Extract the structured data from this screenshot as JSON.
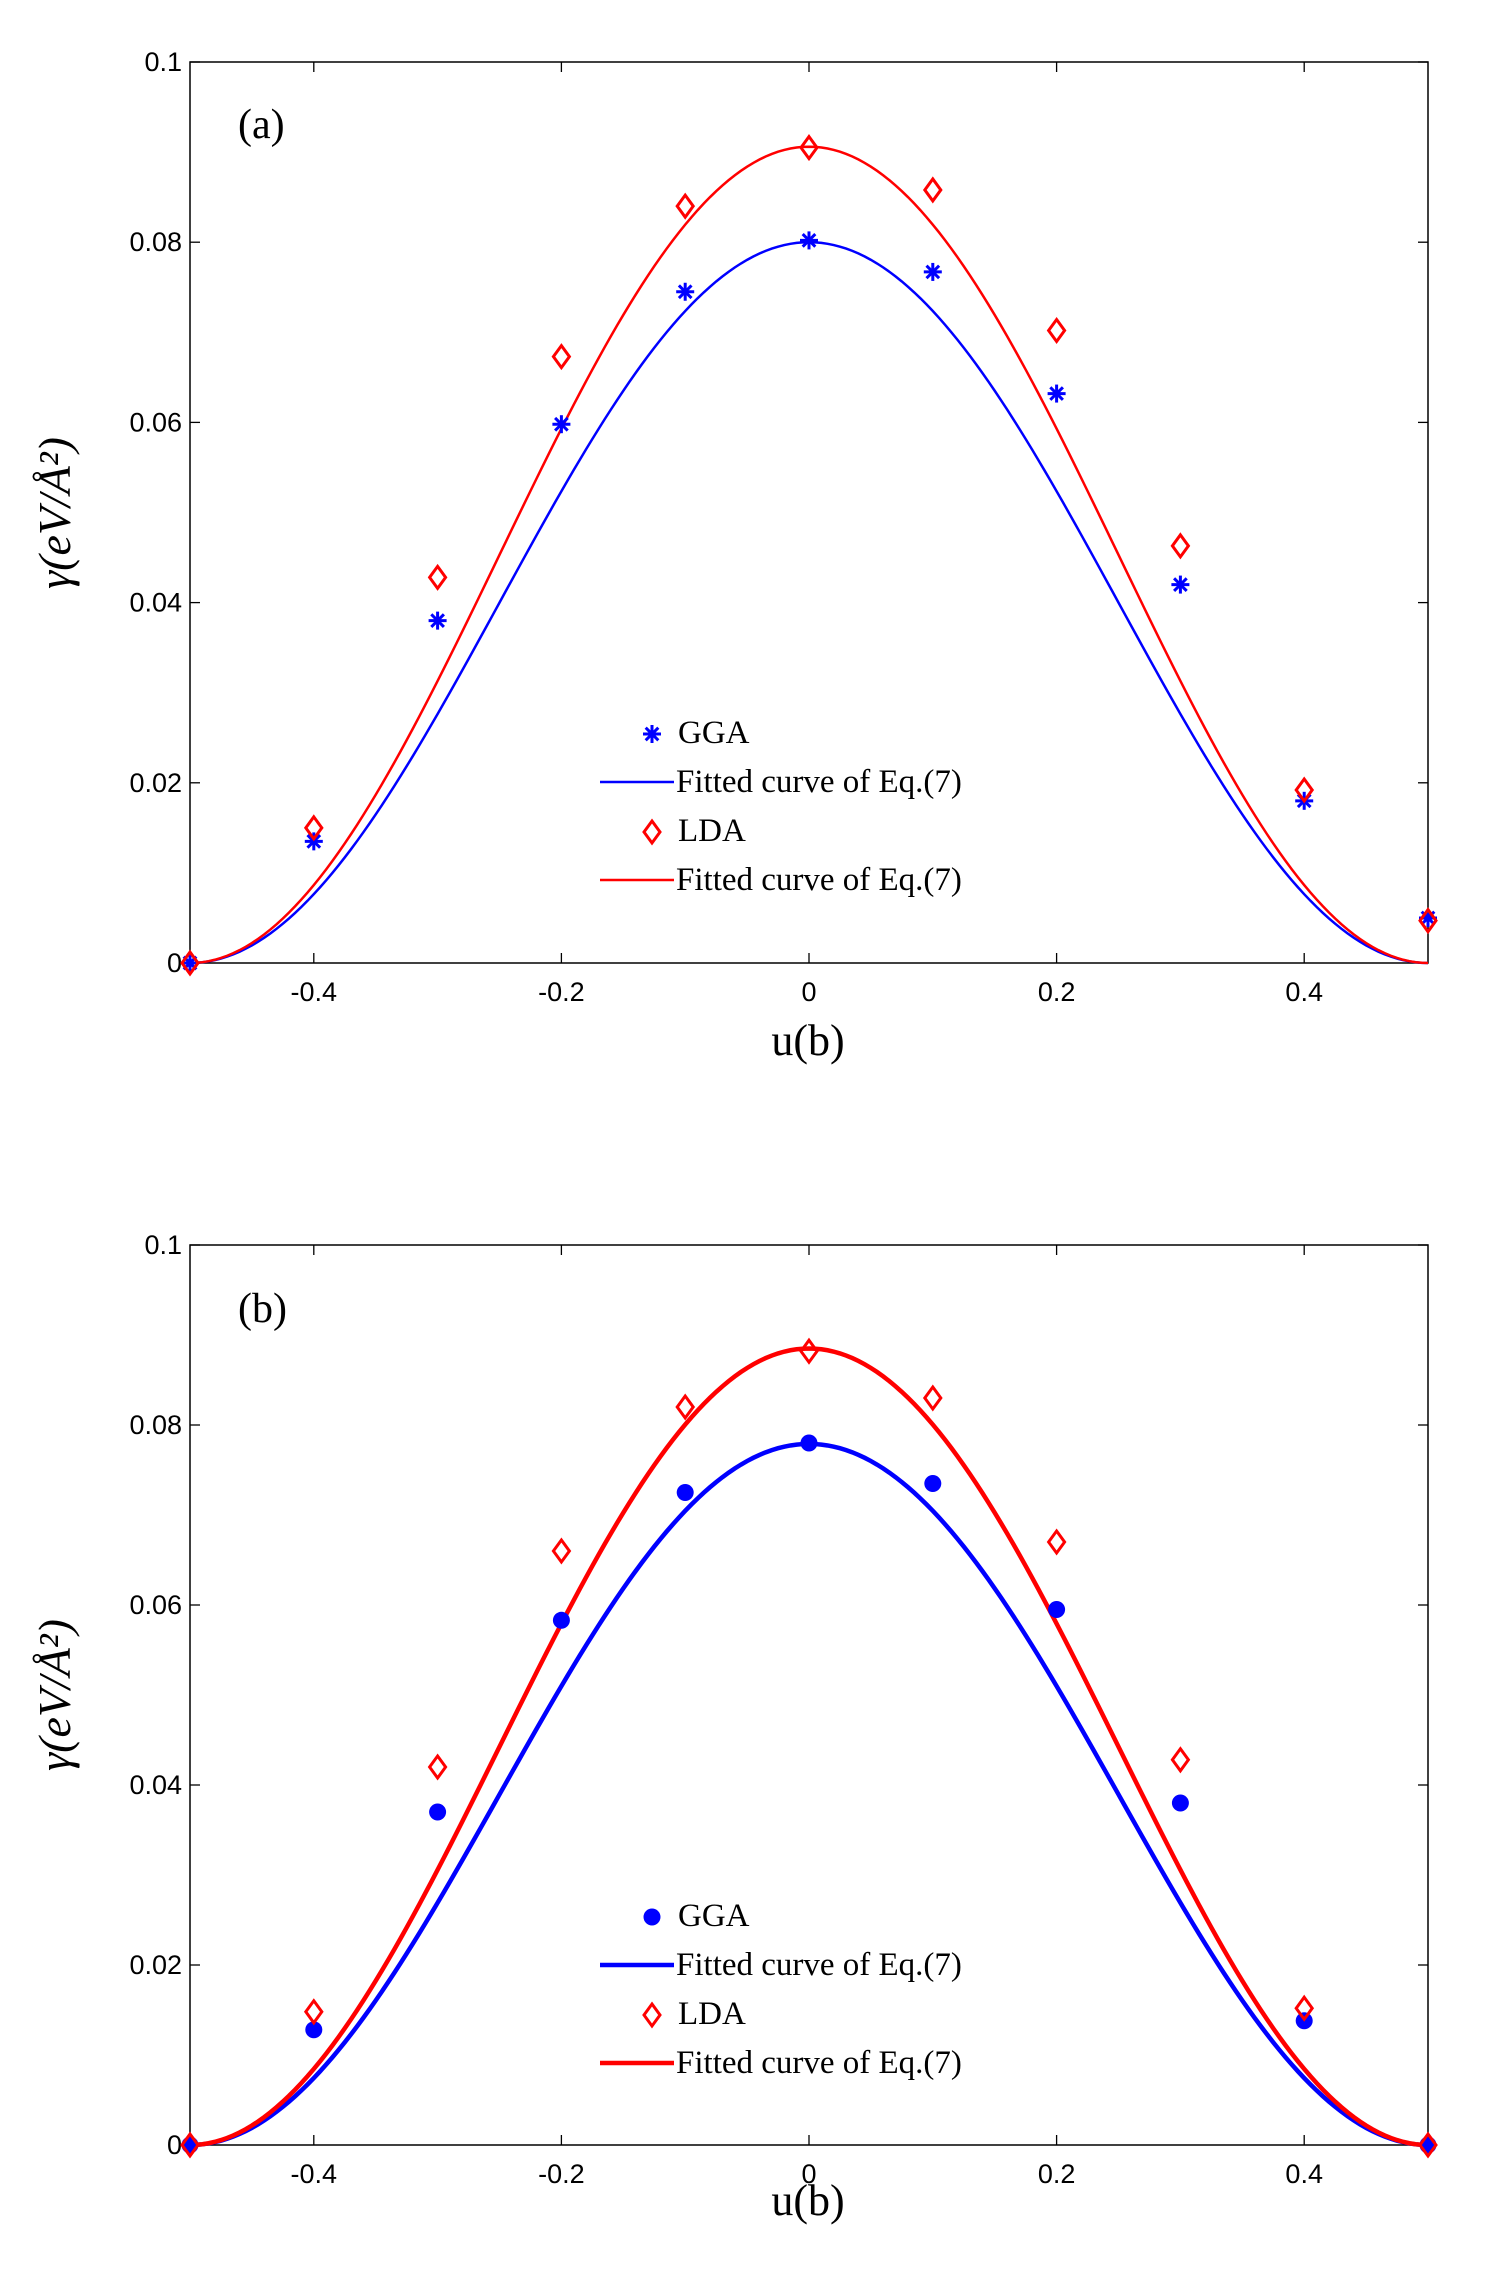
{
  "chart_data": [
    {
      "type": "line",
      "panel_label": "(a)",
      "xlabel": "u(b)",
      "ylabel": "γ(eV/Å²)",
      "xlim": [
        -0.5,
        0.5
      ],
      "ylim": [
        0,
        0.1
      ],
      "xticks": [
        -0.4,
        -0.2,
        0,
        0.2,
        0.4
      ],
      "xtick_labels": [
        "-0.4",
        "-0.2",
        "0",
        "0.2",
        "0.4"
      ],
      "yticks": [
        0,
        0.02,
        0.04,
        0.06,
        0.08,
        0.1
      ],
      "ytick_labels": [
        "0",
        "0.02",
        "0.04",
        "0.06",
        "0.08",
        "0.1"
      ],
      "grid": false,
      "legend_position": "lower-center",
      "series": [
        {
          "name": "GGA",
          "kind": "markers",
          "marker": "asterisk",
          "color": "#0000ff",
          "x": [
            -0.5,
            -0.4,
            -0.3,
            -0.2,
            -0.1,
            0,
            0.1,
            0.2,
            0.3,
            0.4,
            0.5
          ],
          "y": [
            0,
            0.0135,
            0.038,
            0.0598,
            0.0745,
            0.0802,
            0.0767,
            0.0632,
            0.042,
            0.018,
            0.005
          ]
        },
        {
          "name": "Fitted curve of Eq.(7)",
          "kind": "curve",
          "color": "#0000ff",
          "peak": 0.08,
          "stroke": "thin"
        },
        {
          "name": "LDA",
          "kind": "markers",
          "marker": "diamond",
          "color": "#ff0000",
          "x": [
            -0.5,
            -0.4,
            -0.3,
            -0.2,
            -0.1,
            0,
            0.1,
            0.2,
            0.3,
            0.4,
            0.5
          ],
          "y": [
            0,
            0.015,
            0.0428,
            0.0673,
            0.084,
            0.0905,
            0.0858,
            0.0702,
            0.0463,
            0.0192,
            0.0047
          ]
        },
        {
          "name": "Fitted curve of Eq.(7)",
          "kind": "curve",
          "color": "#ff0000",
          "peak": 0.0906,
          "stroke": "thin"
        }
      ]
    },
    {
      "type": "line",
      "panel_label": "(b)",
      "xlabel": "u(b)",
      "ylabel": "γ(eV/Å²)",
      "xlim": [
        -0.5,
        0.5
      ],
      "ylim": [
        0,
        0.1
      ],
      "xticks": [
        -0.4,
        -0.2,
        0,
        0.2,
        0.4
      ],
      "xtick_labels": [
        "-0.4",
        "-0.2",
        "0",
        "0.2",
        "0.4"
      ],
      "yticks": [
        0,
        0.02,
        0.04,
        0.06,
        0.08,
        0.1
      ],
      "ytick_labels": [
        "0",
        "0.02",
        "0.04",
        "0.06",
        "0.08",
        "0.1"
      ],
      "grid": false,
      "legend_position": "lower-center",
      "series": [
        {
          "name": "GGA",
          "kind": "markers",
          "marker": "dot",
          "color": "#0000ff",
          "x": [
            -0.5,
            -0.4,
            -0.3,
            -0.2,
            -0.1,
            0,
            0.1,
            0.2,
            0.3,
            0.4,
            0.5
          ],
          "y": [
            0,
            0.0128,
            0.037,
            0.0583,
            0.0725,
            0.078,
            0.0735,
            0.0595,
            0.038,
            0.0138,
            0
          ]
        },
        {
          "name": "Fitted curve of Eq.(7)",
          "kind": "curve",
          "color": "#0000ff",
          "peak": 0.0779,
          "stroke": "thick"
        },
        {
          "name": "LDA",
          "kind": "markers",
          "marker": "diamond",
          "color": "#ff0000",
          "x": [
            -0.5,
            -0.4,
            -0.3,
            -0.2,
            -0.1,
            0,
            0.1,
            0.2,
            0.3,
            0.4,
            0.5
          ],
          "y": [
            0,
            0.0148,
            0.042,
            0.066,
            0.082,
            0.0882,
            0.083,
            0.067,
            0.0428,
            0.0152,
            0
          ]
        },
        {
          "name": "Fitted curve of Eq.(7)",
          "kind": "curve",
          "color": "#ff0000",
          "peak": 0.0885,
          "stroke": "thick"
        }
      ]
    }
  ]
}
